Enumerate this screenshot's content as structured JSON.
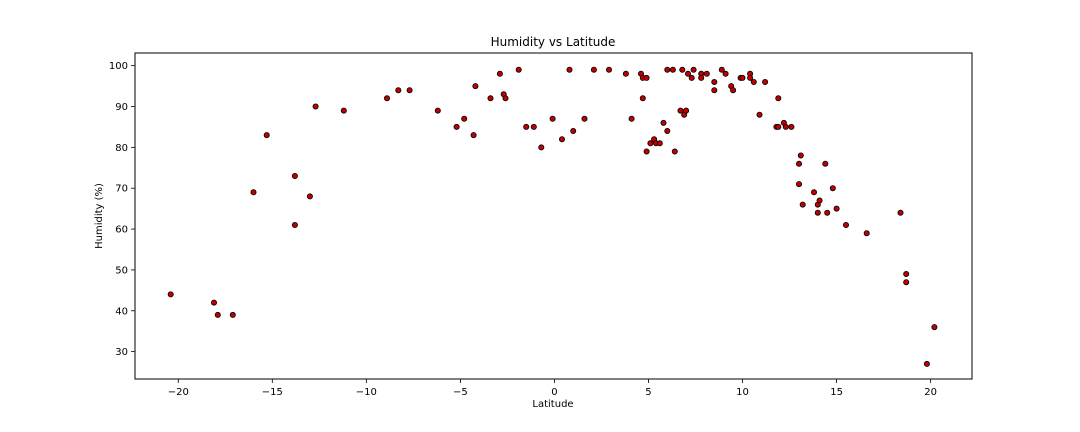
{
  "chart_data": {
    "type": "scatter",
    "title": "Humidity vs Latitude",
    "xlabel": "Latitude",
    "ylabel": "Humidity (%)",
    "xlim": [
      -22.3,
      22.2
    ],
    "ylim": [
      23.3,
      103.1
    ],
    "xticks": [
      -20,
      -15,
      -10,
      -5,
      0,
      5,
      10,
      15,
      20
    ],
    "yticks": [
      30,
      40,
      50,
      60,
      70,
      80,
      90,
      100
    ],
    "grid": false,
    "marker_color": "#c00000",
    "marker_edge_color": "#000000",
    "points": [
      {
        "x": -20.4,
        "y": 44
      },
      {
        "x": -18.1,
        "y": 42
      },
      {
        "x": -17.9,
        "y": 39
      },
      {
        "x": -17.1,
        "y": 39
      },
      {
        "x": -16.0,
        "y": 69
      },
      {
        "x": -15.3,
        "y": 83
      },
      {
        "x": -13.8,
        "y": 73
      },
      {
        "x": -13.8,
        "y": 61
      },
      {
        "x": -13.0,
        "y": 68
      },
      {
        "x": -12.7,
        "y": 90
      },
      {
        "x": -11.2,
        "y": 89
      },
      {
        "x": -8.9,
        "y": 92
      },
      {
        "x": -8.3,
        "y": 94
      },
      {
        "x": -7.7,
        "y": 94
      },
      {
        "x": -6.2,
        "y": 89
      },
      {
        "x": -5.2,
        "y": 85
      },
      {
        "x": -4.8,
        "y": 87
      },
      {
        "x": -4.3,
        "y": 83
      },
      {
        "x": -4.2,
        "y": 95
      },
      {
        "x": -3.4,
        "y": 92
      },
      {
        "x": -2.9,
        "y": 98
      },
      {
        "x": -2.7,
        "y": 93
      },
      {
        "x": -2.6,
        "y": 92
      },
      {
        "x": -1.9,
        "y": 99
      },
      {
        "x": -1.5,
        "y": 85
      },
      {
        "x": -1.1,
        "y": 85
      },
      {
        "x": -0.7,
        "y": 80
      },
      {
        "x": -0.1,
        "y": 87
      },
      {
        "x": 0.4,
        "y": 82
      },
      {
        "x": 0.8,
        "y": 99
      },
      {
        "x": 1.0,
        "y": 84
      },
      {
        "x": 1.6,
        "y": 87
      },
      {
        "x": 2.1,
        "y": 99
      },
      {
        "x": 2.9,
        "y": 99
      },
      {
        "x": 3.8,
        "y": 98
      },
      {
        "x": 4.1,
        "y": 87
      },
      {
        "x": 4.6,
        "y": 98
      },
      {
        "x": 4.7,
        "y": 97
      },
      {
        "x": 4.7,
        "y": 92
      },
      {
        "x": 4.9,
        "y": 79
      },
      {
        "x": 4.9,
        "y": 97
      },
      {
        "x": 5.1,
        "y": 81
      },
      {
        "x": 5.3,
        "y": 82
      },
      {
        "x": 5.4,
        "y": 81
      },
      {
        "x": 5.6,
        "y": 81
      },
      {
        "x": 5.8,
        "y": 86
      },
      {
        "x": 6.0,
        "y": 99
      },
      {
        "x": 6.0,
        "y": 84
      },
      {
        "x": 6.3,
        "y": 99
      },
      {
        "x": 6.4,
        "y": 79
      },
      {
        "x": 6.7,
        "y": 89
      },
      {
        "x": 6.8,
        "y": 99
      },
      {
        "x": 6.9,
        "y": 88
      },
      {
        "x": 7.0,
        "y": 89
      },
      {
        "x": 7.1,
        "y": 98
      },
      {
        "x": 7.3,
        "y": 97
      },
      {
        "x": 7.4,
        "y": 99
      },
      {
        "x": 7.8,
        "y": 98
      },
      {
        "x": 7.8,
        "y": 97
      },
      {
        "x": 8.1,
        "y": 98
      },
      {
        "x": 8.5,
        "y": 96
      },
      {
        "x": 8.5,
        "y": 94
      },
      {
        "x": 8.9,
        "y": 99
      },
      {
        "x": 9.1,
        "y": 98
      },
      {
        "x": 9.4,
        "y": 95
      },
      {
        "x": 9.5,
        "y": 94
      },
      {
        "x": 9.9,
        "y": 97
      },
      {
        "x": 10.0,
        "y": 97
      },
      {
        "x": 10.4,
        "y": 98
      },
      {
        "x": 10.4,
        "y": 97
      },
      {
        "x": 10.6,
        "y": 96
      },
      {
        "x": 10.9,
        "y": 88
      },
      {
        "x": 11.2,
        "y": 96
      },
      {
        "x": 11.8,
        "y": 85
      },
      {
        "x": 11.9,
        "y": 92
      },
      {
        "x": 11.9,
        "y": 85
      },
      {
        "x": 12.2,
        "y": 86
      },
      {
        "x": 12.3,
        "y": 85
      },
      {
        "x": 12.6,
        "y": 85
      },
      {
        "x": 13.0,
        "y": 76
      },
      {
        "x": 13.0,
        "y": 71
      },
      {
        "x": 13.1,
        "y": 78
      },
      {
        "x": 13.2,
        "y": 66
      },
      {
        "x": 13.8,
        "y": 69
      },
      {
        "x": 14.0,
        "y": 66
      },
      {
        "x": 14.0,
        "y": 64
      },
      {
        "x": 14.1,
        "y": 67
      },
      {
        "x": 14.4,
        "y": 76
      },
      {
        "x": 14.5,
        "y": 64
      },
      {
        "x": 14.8,
        "y": 70
      },
      {
        "x": 15.0,
        "y": 65
      },
      {
        "x": 15.5,
        "y": 61
      },
      {
        "x": 16.6,
        "y": 59
      },
      {
        "x": 18.4,
        "y": 64
      },
      {
        "x": 18.7,
        "y": 49
      },
      {
        "x": 18.7,
        "y": 47
      },
      {
        "x": 19.8,
        "y": 27
      },
      {
        "x": 20.2,
        "y": 36
      }
    ]
  }
}
